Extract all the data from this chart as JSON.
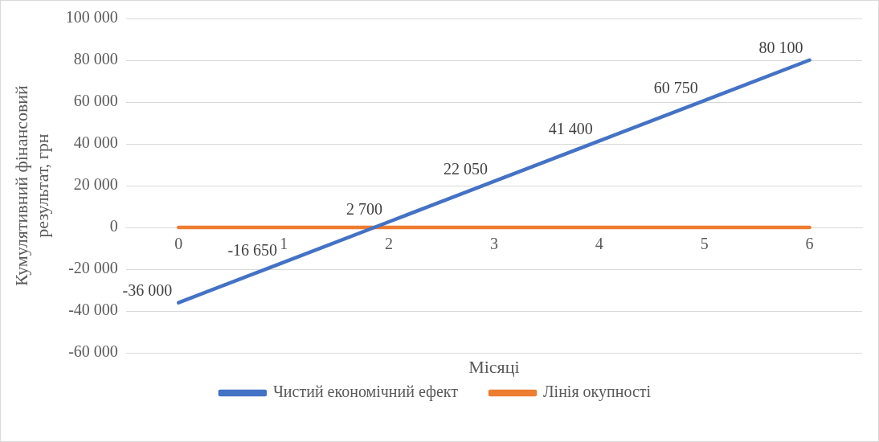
{
  "chart_data": {
    "type": "line",
    "xlabel": "Місяці",
    "ylabel": "Кумулятивний фінансовий результат, грн",
    "categories": [
      "0",
      "1",
      "2",
      "3",
      "4",
      "5",
      "6"
    ],
    "series": [
      {
        "name": "Чистий економічний ефект",
        "color": "#4472c4",
        "values": [
          -36000,
          -16650,
          2700,
          22050,
          41400,
          60750,
          80100
        ],
        "value_labels": [
          "-36 000",
          "-16 650",
          "2 700",
          "22 050",
          "41 400",
          "60 750",
          "80 100"
        ]
      },
      {
        "name": "Лінія окупності",
        "color": "#ed7d31",
        "values": [
          0,
          0,
          0,
          0,
          0,
          0,
          0
        ]
      }
    ],
    "ylim": [
      -60000,
      100000
    ],
    "yticks": [
      {
        "value": -60000,
        "label": "-60 000"
      },
      {
        "value": -40000,
        "label": "-40 000"
      },
      {
        "value": -20000,
        "label": "-20 000"
      },
      {
        "value": 0,
        "label": "0"
      },
      {
        "value": 20000,
        "label": "20 000"
      },
      {
        "value": 40000,
        "label": "40 000"
      },
      {
        "value": 60000,
        "label": "60 000"
      },
      {
        "value": 80000,
        "label": "80 000"
      },
      {
        "value": 100000,
        "label": "100 000"
      }
    ],
    "grid": "y",
    "legend": "bottom",
    "marker": "none",
    "line_style": "solid"
  }
}
